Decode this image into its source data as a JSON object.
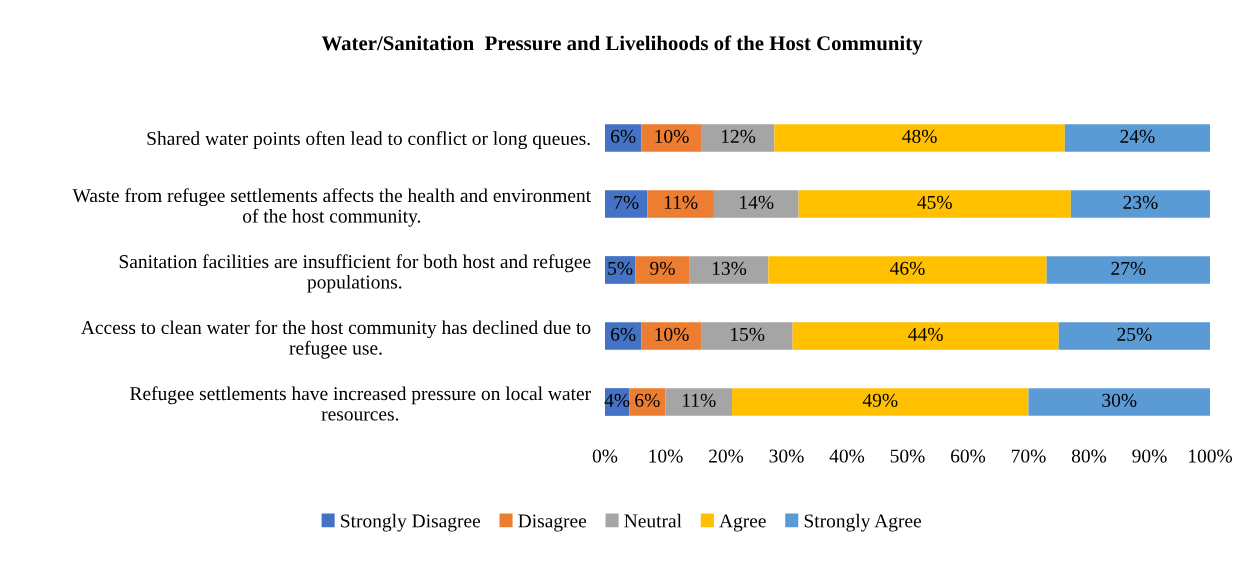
{
  "chart_data": {
    "type": "bar",
    "orientation": "horizontal",
    "stacked": true,
    "title": "Water/Sanitation  Pressure and Livelihoods of the Host Community",
    "categories": [
      "Shared water points often lead to conflict or long queues.",
      "Waste from refugee settlements affects the health and environment\nof the host community.",
      "Sanitation facilities are insufficient for both host and refugee\npopulations.",
      "Access to clean water for the host community has declined due to\nrefugee use.",
      "Refugee settlements have increased pressure on local water\nresources."
    ],
    "series": [
      {
        "name": "Strongly Disagree",
        "color": "#4472c4",
        "values": [
          6,
          7,
          5,
          6,
          4
        ],
        "value_labels": [
          "6%",
          "7%",
          "5%",
          "6%",
          "4%"
        ]
      },
      {
        "name": "Disagree",
        "color": "#ed7d31",
        "values": [
          10,
          11,
          9,
          10,
          6
        ],
        "value_labels": [
          "10%",
          "11%",
          "9%",
          "10%",
          "6%"
        ]
      },
      {
        "name": "Neutral",
        "color": "#a5a5a5",
        "values": [
          12,
          14,
          13,
          15,
          11
        ],
        "value_labels": [
          "12%",
          "14%",
          "13%",
          "15%",
          "11%"
        ]
      },
      {
        "name": "Agree",
        "color": "#ffc000",
        "values": [
          48,
          45,
          46,
          44,
          49
        ],
        "value_labels": [
          "48%",
          "45%",
          "46%",
          "44%",
          "49%"
        ]
      },
      {
        "name": "Strongly Agree",
        "color": "#5b9bd5",
        "values": [
          24,
          23,
          27,
          25,
          30
        ],
        "value_labels": [
          "24%",
          "23%",
          "27%",
          "25%",
          "30%"
        ]
      }
    ],
    "xlim": [
      0,
      100
    ],
    "xticks": [
      {
        "value": 0,
        "label": "0%"
      },
      {
        "value": 10,
        "label": "10%"
      },
      {
        "value": 20,
        "label": "20%"
      },
      {
        "value": 30,
        "label": "30%"
      },
      {
        "value": 40,
        "label": "40%"
      },
      {
        "value": 50,
        "label": "50%"
      },
      {
        "value": 60,
        "label": "60%"
      },
      {
        "value": 70,
        "label": "70%"
      },
      {
        "value": 80,
        "label": "80%"
      },
      {
        "value": 90,
        "label": "90%"
      },
      {
        "value": 100,
        "label": "100%"
      }
    ],
    "grid": false,
    "legend": "bottom"
  }
}
